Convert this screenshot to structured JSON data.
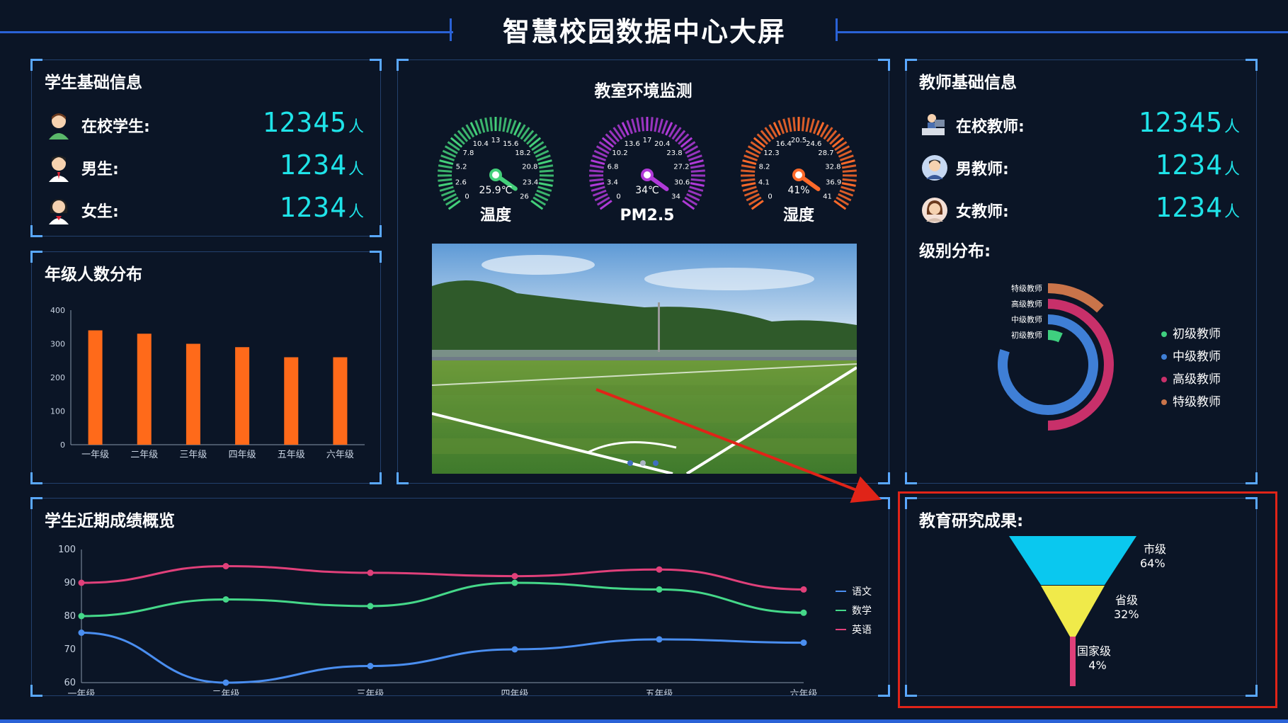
{
  "header": {
    "title": "智慧校园数据中心大屏"
  },
  "students": {
    "title": "学生基础信息",
    "rows": [
      {
        "label": "在校学生:",
        "value": "12345",
        "unit": "人"
      },
      {
        "label": "男生:",
        "value": "1234",
        "unit": "人"
      },
      {
        "label": "女生:",
        "value": "1234",
        "unit": "人"
      }
    ]
  },
  "grade_chart": {
    "title": "年级人数分布",
    "chart_data": {
      "type": "bar",
      "categories": [
        "一年级",
        "二年级",
        "三年级",
        "四年级",
        "五年级",
        "六年级"
      ],
      "values": [
        340,
        330,
        300,
        290,
        260,
        260
      ],
      "ylim": [
        0,
        400
      ],
      "yticks": [
        "0",
        "100",
        "200",
        "300",
        "400"
      ],
      "color": "#ff6a1a"
    }
  },
  "environment": {
    "title": "教室环境监测",
    "gauges": [
      {
        "name": "温度",
        "value": 25.9,
        "display": "25.9℃",
        "max": 26,
        "color": "#44d07a",
        "ticks": [
          "0",
          "2.6",
          "5.2",
          "7.8",
          "10.4",
          "13",
          "15.6",
          "18.2",
          "20.8",
          "23.4",
          "26"
        ]
      },
      {
        "name": "PM2.5",
        "value": 34,
        "display": "34℃",
        "max": 34,
        "color": "#b03ad8",
        "ticks": [
          "0",
          "3.4",
          "6.8",
          "10.2",
          "13.6",
          "17",
          "20.4",
          "23.8",
          "27.2",
          "30.6",
          "34"
        ]
      },
      {
        "name": "湿度",
        "value": 41,
        "display": "41%",
        "max": 41,
        "color": "#ff6a2a",
        "ticks": [
          "0",
          "4.1",
          "8.2",
          "12.3",
          "16.4",
          "20.5",
          "24.6",
          "28.7",
          "32.8",
          "36.9",
          "41"
        ]
      }
    ]
  },
  "teachers": {
    "title": "教师基础信息",
    "rows": [
      {
        "label": "在校教师:",
        "value": "12345",
        "unit": "人"
      },
      {
        "label": "男教师:",
        "value": "1234",
        "unit": "人"
      },
      {
        "label": "女教师:",
        "value": "1234",
        "unit": "人"
      }
    ],
    "level_title": "级别分布:",
    "level_chart": {
      "type": "radial-bar",
      "categories": [
        "特级教师",
        "高级教师",
        "中级教师",
        "初级教师"
      ],
      "colors": [
        "#c9744a",
        "#c8306a",
        "#3f7fd6",
        "#3fcf7f"
      ],
      "fractions": [
        0.12,
        0.5,
        0.8,
        0.07
      ],
      "legend": [
        "初级教师",
        "中级教师",
        "高级教师",
        "特级教师"
      ],
      "legend_colors": [
        "#3fcf7f",
        "#3f7fd6",
        "#c8306a",
        "#c9744a"
      ]
    }
  },
  "scores": {
    "title": "学生近期成绩概览",
    "chart_data": {
      "type": "line",
      "categories": [
        "一年级",
        "二年级",
        "三年级",
        "四年级",
        "五年级",
        "六年级"
      ],
      "ylim": [
        60,
        100
      ],
      "yticks": [
        "60",
        "70",
        "80",
        "90",
        "100"
      ],
      "series": [
        {
          "name": "语文",
          "color": "#4a8ef0",
          "values": [
            75,
            60,
            65,
            70,
            73,
            72
          ]
        },
        {
          "name": "数学",
          "color": "#45d889",
          "values": [
            80,
            85,
            83,
            90,
            88,
            81
          ]
        },
        {
          "name": "英语",
          "color": "#e0407a",
          "values": [
            90,
            95,
            93,
            92,
            94,
            88
          ]
        }
      ]
    }
  },
  "research": {
    "title": "教育研究成果:",
    "chart_data": {
      "type": "funnel",
      "items": [
        {
          "name": "市级",
          "percent": "64%",
          "color": "#0ac8ef"
        },
        {
          "name": "省级",
          "percent": "32%",
          "color": "#f0ea4a"
        },
        {
          "name": "国家级",
          "percent": "4%",
          "color": "#e0407a"
        }
      ]
    }
  },
  "colors": {
    "accent": "#2a62d6",
    "value": "#1fe3e8",
    "highlight": "#e02418"
  }
}
